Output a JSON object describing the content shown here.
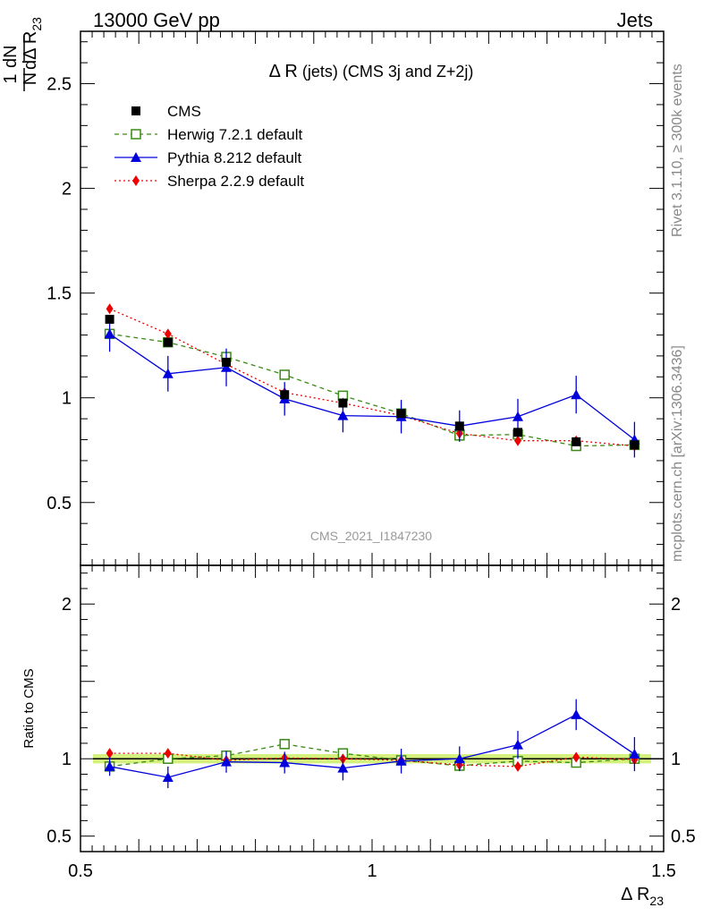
{
  "header": {
    "left": "13000 GeV pp",
    "right": "Jets"
  },
  "side_text": {
    "rivet": "Rivet 3.1.10, ≥ 300k events",
    "mcplots": "mcplots.cern.ch [arXiv:1306.3436]"
  },
  "main_panel": {
    "title_prefix": "Δ R",
    "title_rest": "(jets) (CMS 3j and Z+2j)",
    "ylabel_num": "1",
    "ylabel_den": "N",
    "ylabel_dnum": "dN",
    "ylabel_dden": "dΔ R",
    "ylabel_sub": "23",
    "watermark": "CMS_2021_I1847230"
  },
  "ratio_panel": {
    "ylabel": "Ratio to CMS"
  },
  "xaxis": {
    "label": "Δ R",
    "label_sub": "23"
  },
  "legend": [
    {
      "key": "cms",
      "label": "CMS"
    },
    {
      "key": "herwig",
      "label": "Herwig 7.2.1 default"
    },
    {
      "key": "pythia",
      "label": "Pythia 8.212 default"
    },
    {
      "key": "sherpa",
      "label": "Sherpa 2.2.9 default"
    }
  ],
  "colors": {
    "cms": "#000000",
    "herwig": "#3a8a16",
    "pythia": "#0000dd",
    "sherpa": "#ee0000",
    "band": "#ccee66"
  },
  "chart_data": [
    {
      "type": "line",
      "x": [
        0.55,
        0.65,
        0.75,
        0.85,
        0.95,
        1.05,
        1.15,
        1.25,
        1.35,
        1.45
      ],
      "xlim": [
        0.5,
        1.5
      ],
      "ylim": [
        0.2,
        2.75
      ],
      "xticks": [
        "0.5",
        "1",
        "1.5"
      ],
      "yticks": [
        "0.5",
        "1",
        "1.5",
        "2",
        "2.5"
      ],
      "grid": false,
      "legend_position": "top-left",
      "series": [
        {
          "name": "CMS",
          "key": "cms",
          "values": [
            1.375,
            1.265,
            1.17,
            1.015,
            0.975,
            0.925,
            0.865,
            0.835,
            0.79,
            0.775
          ]
        },
        {
          "name": "Herwig 7.2.1 default",
          "key": "herwig",
          "values": [
            1.305,
            1.265,
            1.195,
            1.11,
            1.01,
            0.925,
            0.82,
            0.825,
            0.77,
            0.775
          ]
        },
        {
          "name": "Pythia 8.212 default",
          "key": "pythia",
          "values": [
            1.305,
            1.115,
            1.145,
            0.995,
            0.915,
            0.91,
            0.865,
            0.91,
            1.015,
            0.8
          ],
          "errors": [
            0.085,
            0.085,
            0.09,
            0.08,
            0.08,
            0.08,
            0.075,
            0.085,
            0.09,
            0.085
          ]
        },
        {
          "name": "Sherpa 2.2.9 default",
          "key": "sherpa",
          "values": [
            1.425,
            1.305,
            1.16,
            1.025,
            0.975,
            0.915,
            0.83,
            0.795,
            0.795,
            0.77
          ]
        }
      ]
    },
    {
      "type": "line",
      "x": [
        0.55,
        0.65,
        0.75,
        0.85,
        0.95,
        1.05,
        1.15,
        1.25,
        1.35,
        1.45
      ],
      "xlim": [
        0.5,
        1.5
      ],
      "ylim": [
        0.4,
        2.25
      ],
      "xticks": [
        "0.5",
        "1",
        "1.5"
      ],
      "yticks": [
        "0.5",
        "1",
        "2"
      ],
      "ylabel": "Ratio to CMS",
      "band": [
        0.97,
        1.03
      ],
      "series": [
        {
          "name": "Herwig 7.2.1 default",
          "key": "herwig",
          "values": [
            0.95,
            1.0,
            1.02,
            1.095,
            1.035,
            0.99,
            0.955,
            0.985,
            0.975,
            1.0
          ]
        },
        {
          "name": "Pythia 8.212 default",
          "key": "pythia",
          "values": [
            0.95,
            0.88,
            0.98,
            0.975,
            0.94,
            0.985,
            1.0,
            1.09,
            1.285,
            1.03
          ],
          "errors": [
            0.06,
            0.07,
            0.07,
            0.07,
            0.08,
            0.08,
            0.08,
            0.09,
            0.1,
            0.11
          ]
        },
        {
          "name": "Sherpa 2.2.9 default",
          "key": "sherpa",
          "values": [
            1.035,
            1.035,
            0.99,
            1.005,
            1.0,
            0.99,
            0.96,
            0.95,
            1.01,
            0.995
          ]
        }
      ]
    }
  ]
}
